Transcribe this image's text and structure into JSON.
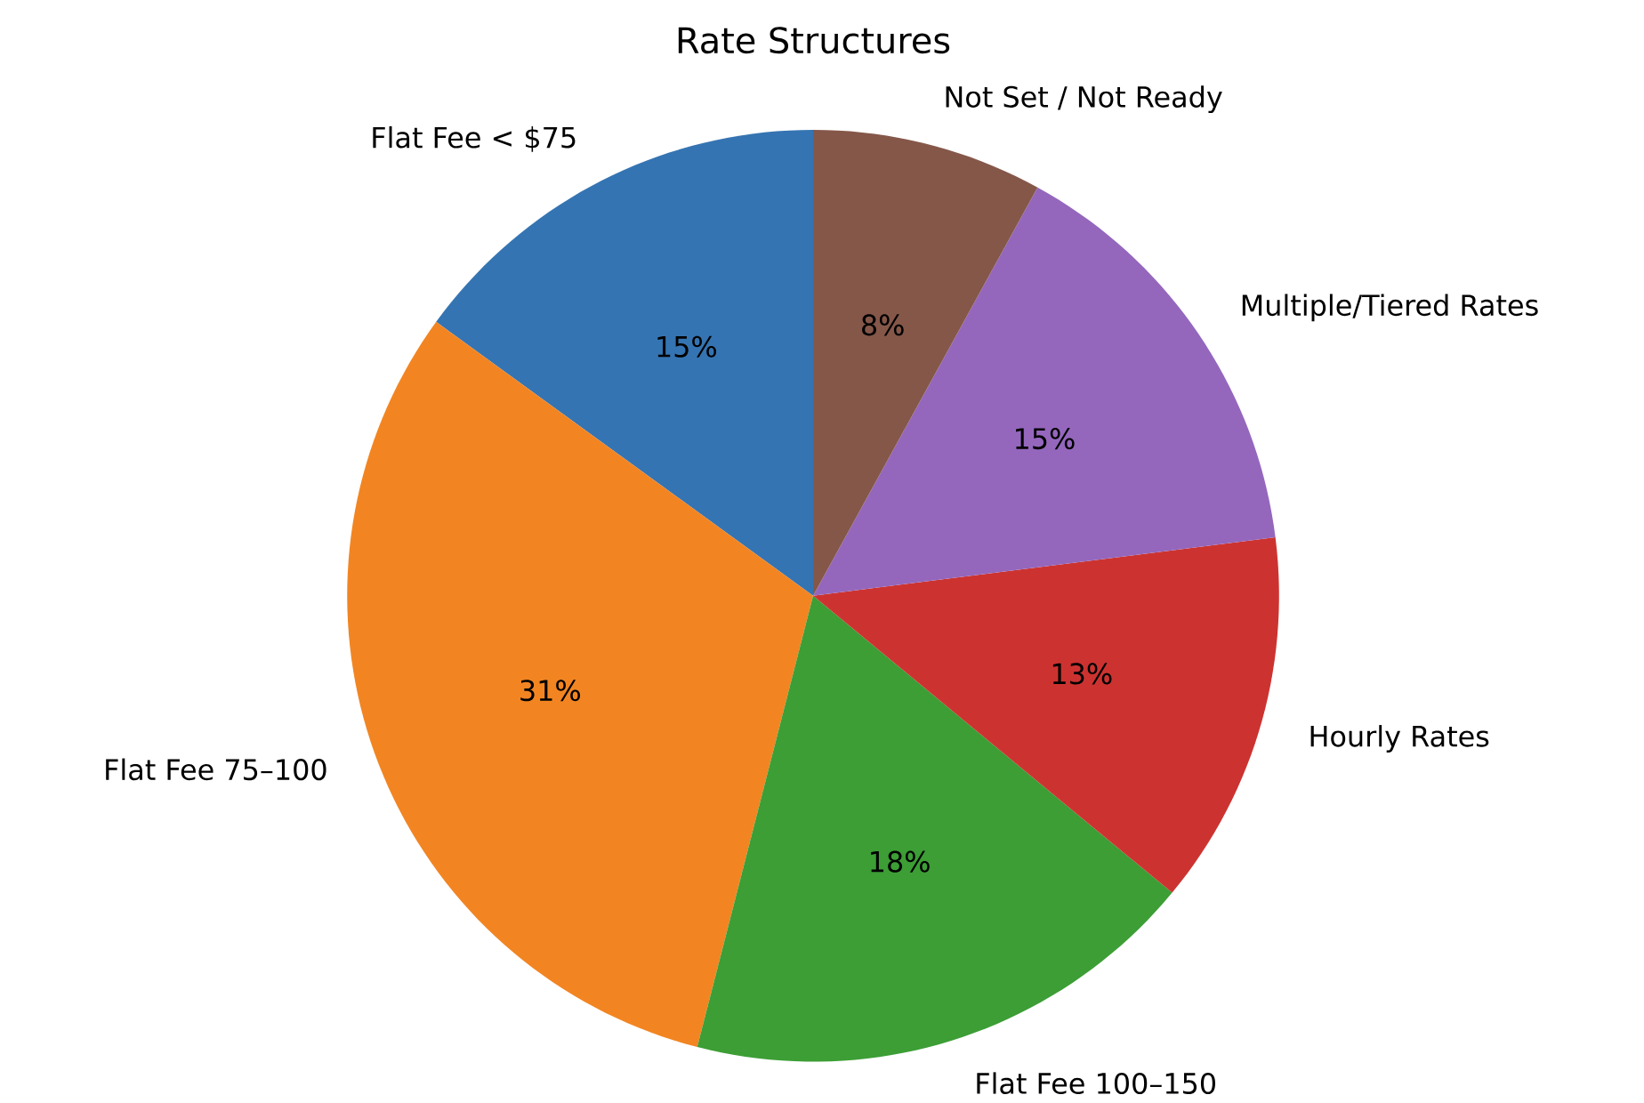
{
  "chart_data": {
    "type": "pie",
    "title": "Rate Structures",
    "categories": [
      "Flat Fee < $75",
      "Flat Fee 75–100",
      "Flat Fee 100–150",
      "Hourly Rates",
      "Multiple/Tiered Rates",
      "Not Set / Not Ready"
    ],
    "values": [
      15,
      31,
      18,
      13,
      15,
      8
    ],
    "colors": [
      "#3574b2",
      "#f28522",
      "#3c9e35",
      "#cc3330",
      "#9467bd",
      "#855749"
    ],
    "value_labels": [
      "15%",
      "31%",
      "18%",
      "13%",
      "15%",
      "8%"
    ]
  }
}
